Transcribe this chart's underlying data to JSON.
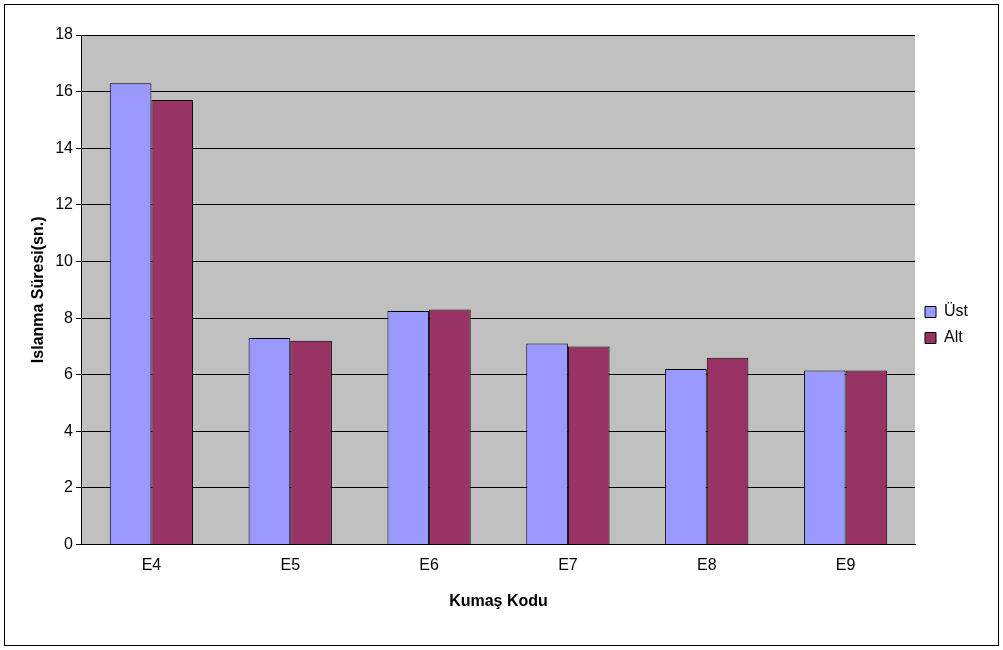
{
  "chart_data": {
    "type": "bar",
    "xlabel": "Kumaş Kodu",
    "ylabel": "Islanma Süresi(sn.)",
    "categories": [
      "E4",
      "E5",
      "E6",
      "E7",
      "E8",
      "E9"
    ],
    "series": [
      {
        "name": "Üst",
        "color": "#9999ff",
        "values": [
          16.3,
          7.3,
          8.25,
          7.1,
          6.2,
          6.15
        ]
      },
      {
        "name": "Alt",
        "color": "#993366",
        "values": [
          15.7,
          7.2,
          8.3,
          7.0,
          6.6,
          6.15
        ]
      }
    ],
    "ylim": [
      0,
      18
    ],
    "yticks": [
      0,
      2,
      4,
      6,
      8,
      10,
      12,
      14,
      16,
      18
    ],
    "grid": "y",
    "legend": "right"
  }
}
